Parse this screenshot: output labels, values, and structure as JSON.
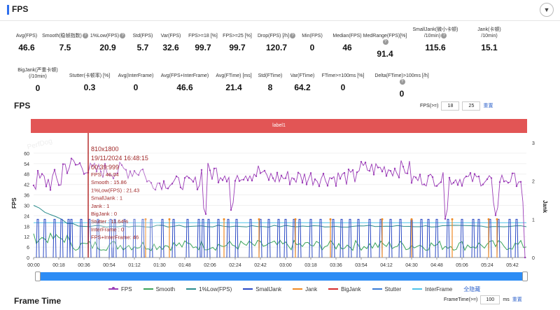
{
  "header": {
    "title": "FPS",
    "collapse_icon": "chevron-down-icon"
  },
  "metrics_row1": [
    {
      "label": "Avg(FPS)",
      "value": "46.6",
      "help": false
    },
    {
      "label": "Smooth(稳帧指数)",
      "value": "7.5",
      "help": true
    },
    {
      "label": "1%Low(FPS)",
      "value": "20.9",
      "help": true
    },
    {
      "label": "Std(FPS)",
      "value": "5.7",
      "help": false
    },
    {
      "label": "Var(FPS)",
      "value": "32.6",
      "help": false
    },
    {
      "label": "FPS>=18 [%]",
      "value": "99.7",
      "help": false
    },
    {
      "label": "FPS>=25 [%]",
      "value": "99.7",
      "help": false
    },
    {
      "label": "Drop(FPS) [/h]",
      "value": "120.7",
      "help": true
    },
    {
      "label": "Min(FPS)",
      "value": "0",
      "help": false
    },
    {
      "label": "Median(FPS)",
      "value": "46",
      "help": false
    },
    {
      "label": "MedRange(FPS)[%]",
      "value": "91.4",
      "help": true
    },
    {
      "label": "SmallJank(微小卡顿)\n/10min)",
      "value": "115.6",
      "help": true
    },
    {
      "label": "Jank(卡顿)\n/10min)",
      "value": "15.1",
      "help": false
    }
  ],
  "metrics_row2": [
    {
      "label": "BigJank(严重卡顿)\n(/10min)",
      "value": "0",
      "help": false
    },
    {
      "label": "Stutter(卡顿率) [%]",
      "value": "0.3",
      "help": false
    },
    {
      "label": "Avg(InterFrame)",
      "value": "0",
      "help": false
    },
    {
      "label": "Avg(FPS+InterFrame)",
      "value": "46.6",
      "help": false
    },
    {
      "label": "Avg(FTime) [ms]",
      "value": "21.4",
      "help": false
    },
    {
      "label": "Std(FTime)",
      "value": "8",
      "help": false
    },
    {
      "label": "Var(FTime)",
      "value": "64.2",
      "help": false
    },
    {
      "label": "FTime>=100ms [%]",
      "value": "0",
      "help": false
    },
    {
      "label": "Delta(FTime)>100ms [/h]",
      "value": "0",
      "help": true
    }
  ],
  "fps_section": {
    "title": "FPS",
    "threshold_label": "FPS(>=)",
    "threshold_1": "18",
    "threshold_2": "25",
    "reset_label": "重置",
    "label_bar": "label1",
    "watermark": "PerfDog"
  },
  "chart_data": {
    "type": "line",
    "ylabel": "FPS",
    "y2label": "Jank",
    "ylim": [
      0,
      66
    ],
    "y2lim": [
      0,
      3
    ],
    "y_ticks": [
      "0",
      "6",
      "12",
      "18",
      "24",
      "30",
      "36",
      "42",
      "48",
      "54",
      "60"
    ],
    "y2_ticks": [
      "0",
      "1",
      "2",
      "3"
    ],
    "x_ticks": [
      "00:00",
      "00:18",
      "00:36",
      "00:54",
      "01:12",
      "01:30",
      "01:48",
      "02:06",
      "02:24",
      "02:42",
      "03:00",
      "03:18",
      "03:36",
      "03:54",
      "04:12",
      "04:30",
      "04:48",
      "05:06",
      "05:24",
      "05:42"
    ],
    "duration_s": 352,
    "series": [
      {
        "name": "FPS",
        "color": "#9b3cb7"
      },
      {
        "name": "Smooth",
        "color": "#3aa35a"
      },
      {
        "name": "1%Low(FPS)",
        "color": "#2b8c8c"
      },
      {
        "name": "SmallJank",
        "color": "#2a49c4"
      },
      {
        "name": "Jank",
        "color": "#f08a24"
      },
      {
        "name": "BigJank",
        "color": "#d62b2b"
      },
      {
        "name": "Stutter",
        "color": "#3a7bd5"
      },
      {
        "name": "InterFrame",
        "color": "#4fc3e8"
      }
    ],
    "fps_segments": [
      {
        "from_s": 0,
        "to_s": 20,
        "base": 44,
        "amp": 7
      },
      {
        "from_s": 20,
        "to_s": 38,
        "base": 53,
        "amp": 6
      },
      {
        "from_s": 38,
        "to_s": 80,
        "base": 50,
        "amp": 5
      },
      {
        "from_s": 80,
        "to_s": 120,
        "base": 43,
        "amp": 4
      },
      {
        "from_s": 120,
        "to_s": 165,
        "base": 49,
        "amp": 6
      },
      {
        "from_s": 165,
        "to_s": 230,
        "base": 46,
        "amp": 5
      },
      {
        "from_s": 230,
        "to_s": 270,
        "base": 51,
        "amp": 5
      },
      {
        "from_s": 270,
        "to_s": 352,
        "base": 45,
        "amp": 4
      }
    ],
    "fps_dips_s": [
      122,
      142,
      295,
      330,
      351
    ],
    "smalljank_s": [
      3,
      8,
      15,
      20,
      25,
      27,
      34,
      40,
      46,
      55,
      58,
      65,
      72,
      78,
      84,
      92,
      100,
      110,
      118,
      121,
      125,
      132,
      139,
      145,
      155,
      162,
      168,
      175,
      180,
      186,
      190,
      198,
      205,
      214,
      220,
      226,
      232,
      240,
      248,
      255,
      262,
      270,
      277,
      282,
      288,
      296,
      306,
      314,
      318,
      326,
      332,
      340,
      345
    ],
    "jank_s": [
      80,
      97,
      136,
      161,
      187,
      212,
      249,
      270,
      299,
      325,
      331
    ],
    "lowfps_start": 30,
    "lowfps_end": 18,
    "stutter_level": 20,
    "marker_s": 39
  },
  "tooltip": {
    "lines": [
      "810x1800",
      "19/11/2024 16:48:15",
      "00:39:999",
      "FPS          : 46.04",
      "Smooth       : 15.86",
      "1%Low(FPS)   : 21.43",
      "SmallJank    : 1",
      "Jank         : 1",
      "BigJank      : 0",
      "Stutter      : 11.64%",
      "InterFrame   : 0",
      "FPS+InterFrame: 46"
    ]
  },
  "legend": {
    "items": [
      "FPS",
      "Smooth",
      "1%Low(FPS)",
      "SmallJank",
      "Jank",
      "BigJank",
      "Stutter",
      "InterFrame"
    ],
    "colors": [
      "#9b3cb7",
      "#3aa35a",
      "#2b8c8c",
      "#2a49c4",
      "#f08a24",
      "#d62b2b",
      "#3a7bd5",
      "#4fc3e8"
    ],
    "hide_all": "全隐藏"
  },
  "frame_time": {
    "title": "Frame Time",
    "input_label": "FrameTime(>=)",
    "input_value": "100",
    "unit": "ms",
    "reset_label": "重置"
  }
}
